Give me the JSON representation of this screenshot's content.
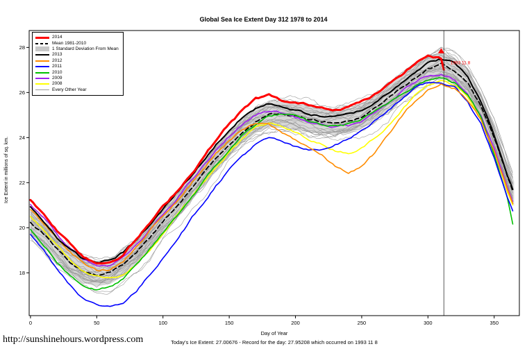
{
  "header": {
    "title": "Global Sea Ice Extent Day 312 1978 to 2014"
  },
  "footer": {
    "link": "http://sunshinehours.wordpress.com",
    "caption": "Today's Ice Extent: 27.00676  - Record for the day: 27.95208 which occurred on 1993 11 8"
  },
  "legend": {
    "items": [
      {
        "label": "2014",
        "color": "#FF0000",
        "style": "line",
        "weight": 3
      },
      {
        "label": "Mean 1981-2010",
        "color": "#000000",
        "style": "dash",
        "weight": 2
      },
      {
        "label": "1 Standard Deviation From Mean",
        "color": "#C8C8C8",
        "style": "box"
      },
      {
        "label": "2013",
        "color": "#000000",
        "style": "line",
        "weight": 2
      },
      {
        "label": "2012",
        "color": "#FF8C00",
        "style": "line",
        "weight": 2
      },
      {
        "label": "2011",
        "color": "#0000FF",
        "style": "line",
        "weight": 2
      },
      {
        "label": "2010",
        "color": "#00C000",
        "style": "line",
        "weight": 2
      },
      {
        "label": "2009",
        "color": "#A020F0",
        "style": "line",
        "weight": 2
      },
      {
        "label": "2008",
        "color": "#FFFF00",
        "style": "line",
        "weight": 2
      },
      {
        "label": "Every Other Year",
        "color": "#999999",
        "style": "line",
        "weight": 1
      }
    ]
  },
  "chart_data": {
    "type": "line",
    "title": "Global Sea Ice Extent Day 312 1978 to 2014",
    "xlabel": "Day of Year",
    "ylabel": "Ice Extent in millions of sq. km.",
    "xlim": [
      -1,
      369
    ],
    "ylim": [
      16.1,
      28.75
    ],
    "xticks": [
      0,
      50,
      100,
      150,
      200,
      250,
      300,
      350
    ],
    "yticks": [
      18,
      20,
      22,
      24,
      26,
      28
    ],
    "grid": false,
    "legend_position": "top-left",
    "vline_x": 312,
    "marker": {
      "x": 310,
      "y": 27.85,
      "shape": "triangle",
      "color": "#FF0000"
    },
    "annotation": {
      "text": "1993 11 8",
      "x": 317,
      "y": 27.25,
      "color": "#FF0000"
    },
    "sd_band": {
      "halfwidth": 0.55,
      "color": "#D3D3D3"
    },
    "days": [
      0,
      10,
      20,
      30,
      40,
      50,
      60,
      70,
      80,
      90,
      100,
      110,
      120,
      130,
      140,
      150,
      160,
      170,
      180,
      190,
      200,
      210,
      220,
      230,
      240,
      250,
      260,
      270,
      280,
      290,
      300,
      310,
      320,
      330,
      340,
      350,
      360,
      365
    ],
    "series": [
      {
        "name": "Mean 1981-2010",
        "color": "#000000",
        "width": 1.8,
        "dash": [
          6,
          4
        ],
        "values": [
          20.2,
          19.7,
          19.1,
          18.5,
          18.1,
          17.95,
          18.05,
          18.4,
          18.9,
          19.55,
          20.25,
          20.95,
          21.65,
          22.35,
          23.05,
          23.7,
          24.3,
          24.75,
          25.0,
          25.05,
          24.95,
          24.85,
          24.75,
          24.7,
          24.75,
          24.95,
          25.3,
          25.75,
          26.25,
          26.7,
          27.05,
          27.25,
          27.0,
          26.45,
          25.45,
          24.0,
          22.3,
          21.5
        ]
      },
      {
        "name": "2008",
        "color": "#FFFF00",
        "width": 1.6,
        "values": [
          20.5,
          19.9,
          19.2,
          18.55,
          18.1,
          17.85,
          17.8,
          17.95,
          18.4,
          19.0,
          19.7,
          20.45,
          21.2,
          21.95,
          22.7,
          23.4,
          24.0,
          24.45,
          24.6,
          24.45,
          24.2,
          23.95,
          23.7,
          23.45,
          23.35,
          23.55,
          24.0,
          24.6,
          25.25,
          25.85,
          26.3,
          26.5,
          26.35,
          25.85,
          24.9,
          23.4,
          21.6,
          20.8
        ]
      },
      {
        "name": "2009",
        "color": "#A020F0",
        "width": 1.6,
        "values": [
          21.0,
          20.4,
          19.7,
          19.1,
          18.6,
          18.3,
          18.35,
          18.65,
          19.2,
          19.85,
          20.55,
          21.25,
          22.0,
          22.7,
          23.4,
          24.05,
          24.6,
          25.0,
          25.2,
          25.1,
          24.9,
          24.7,
          24.55,
          24.45,
          24.5,
          24.7,
          25.05,
          25.5,
          26.0,
          26.45,
          26.75,
          26.85,
          26.6,
          26.0,
          25.0,
          23.5,
          21.8,
          21.0
        ]
      },
      {
        "name": "2010",
        "color": "#00C000",
        "width": 1.6,
        "values": [
          19.9,
          19.2,
          18.5,
          17.9,
          17.45,
          17.25,
          17.35,
          17.7,
          18.3,
          19.0,
          19.75,
          20.5,
          21.25,
          22.0,
          22.75,
          23.45,
          24.1,
          24.6,
          24.95,
          25.05,
          24.9,
          24.7,
          24.55,
          24.5,
          24.6,
          24.8,
          25.1,
          25.5,
          25.95,
          26.35,
          26.6,
          26.65,
          26.45,
          25.9,
          24.9,
          23.3,
          21.4,
          19.9
        ]
      },
      {
        "name": "2011",
        "color": "#0000FF",
        "width": 1.6,
        "values": [
          19.7,
          19.0,
          18.2,
          17.5,
          16.9,
          16.55,
          16.5,
          16.7,
          17.2,
          17.9,
          18.7,
          19.5,
          20.3,
          21.1,
          21.9,
          22.6,
          23.2,
          23.7,
          23.95,
          23.8,
          23.55,
          23.4,
          23.5,
          23.7,
          23.95,
          24.3,
          24.75,
          25.25,
          25.75,
          26.15,
          26.4,
          26.45,
          26.2,
          25.6,
          24.6,
          23.1,
          21.4,
          20.6
        ]
      },
      {
        "name": "2012",
        "color": "#FF8C00",
        "width": 1.6,
        "values": [
          20.8,
          20.2,
          19.5,
          18.9,
          18.4,
          18.1,
          18.15,
          18.5,
          19.1,
          19.8,
          20.5,
          21.2,
          21.9,
          22.6,
          23.3,
          23.9,
          24.35,
          24.6,
          24.55,
          24.2,
          23.9,
          23.6,
          23.2,
          22.7,
          22.45,
          22.7,
          23.3,
          24.1,
          24.9,
          25.6,
          26.1,
          26.35,
          26.2,
          25.7,
          24.8,
          23.4,
          21.7,
          20.9
        ]
      },
      {
        "name": "2013",
        "color": "#000000",
        "width": 2,
        "values": [
          20.9,
          20.3,
          19.6,
          19.0,
          18.6,
          18.45,
          18.55,
          18.9,
          19.45,
          20.1,
          20.8,
          21.5,
          22.2,
          22.95,
          23.7,
          24.35,
          24.9,
          25.3,
          25.5,
          25.4,
          25.2,
          25.05,
          24.95,
          24.9,
          25.0,
          25.2,
          25.55,
          26.0,
          26.5,
          26.95,
          27.3,
          27.5,
          27.3,
          26.7,
          25.6,
          24.1,
          22.35,
          21.6
        ]
      },
      {
        "name": "2014",
        "color": "#FF0000",
        "width": 3,
        "days": [
          0,
          10,
          20,
          30,
          40,
          50,
          60,
          70,
          80,
          90,
          100,
          110,
          120,
          130,
          140,
          150,
          160,
          170,
          180,
          190,
          200,
          210,
          220,
          230,
          240,
          250,
          260,
          270,
          280,
          290,
          300,
          310,
          312
        ],
        "values": [
          21.2,
          20.6,
          19.9,
          19.3,
          18.75,
          18.45,
          18.5,
          18.85,
          19.5,
          20.2,
          20.9,
          21.6,
          22.3,
          23.1,
          23.9,
          24.6,
          25.2,
          25.7,
          25.85,
          25.6,
          25.5,
          25.45,
          25.35,
          25.3,
          25.4,
          25.6,
          25.9,
          26.3,
          26.8,
          27.3,
          27.65,
          27.5,
          27.05
        ]
      }
    ],
    "every_other_year": {
      "count": 27,
      "color": "#999999",
      "width": 0.6,
      "max_deviation": 1.3
    }
  }
}
